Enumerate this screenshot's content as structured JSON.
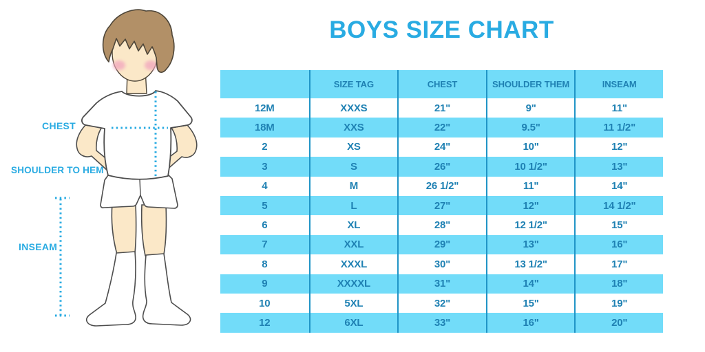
{
  "title": "BOYS SIZE CHART",
  "figure": {
    "labels": {
      "chest": "CHEST",
      "shoulder_to_hem": "SHOULDER TO HEM",
      "inseam": "INSEAM"
    }
  },
  "chart_data": {
    "type": "table",
    "title": "BOYS SIZE CHART",
    "columns": [
      "",
      "SIZE TAG",
      "CHEST",
      "SHOULDER THEM",
      "INSEAM"
    ],
    "rows": [
      [
        "12M",
        "XXXS",
        "21\"",
        "9\"",
        "11\""
      ],
      [
        "18M",
        "XXS",
        "22\"",
        "9.5\"",
        "11 1/2\""
      ],
      [
        "2",
        "XS",
        "24\"",
        "10\"",
        "12\""
      ],
      [
        "3",
        "S",
        "26\"",
        "10 1/2\"",
        "13\""
      ],
      [
        "4",
        "M",
        "26 1/2\"",
        "11\"",
        "14\""
      ],
      [
        "5",
        "L",
        "27\"",
        "12\"",
        "14 1/2\""
      ],
      [
        "6",
        "XL",
        "28\"",
        "12 1/2\"",
        "15\""
      ],
      [
        "7",
        "XXL",
        "29\"",
        "13\"",
        "16\""
      ],
      [
        "8",
        "XXXL",
        "30\"",
        "13 1/2\"",
        "17\""
      ],
      [
        "9",
        "XXXXL",
        "31\"",
        "14\"",
        "18\""
      ],
      [
        "10",
        "5XL",
        "32\"",
        "15\"",
        "19\""
      ],
      [
        "12",
        "6XL",
        "33\"",
        "16\"",
        "20\""
      ]
    ],
    "layout": {
      "striping": "alternating rows, first data row white",
      "header_background": "light blue",
      "grid": "vertical column dividers only, no outer border"
    }
  },
  "colors": {
    "accent": "#29abe2",
    "table_text": "#1f81b3",
    "row_stripe": "#72dcf9",
    "column_divider": "#2094c6",
    "skin": "#fbe8c8",
    "hair": "#b29067",
    "blush": "#f2a9be",
    "outline": "#4d4d4d"
  }
}
